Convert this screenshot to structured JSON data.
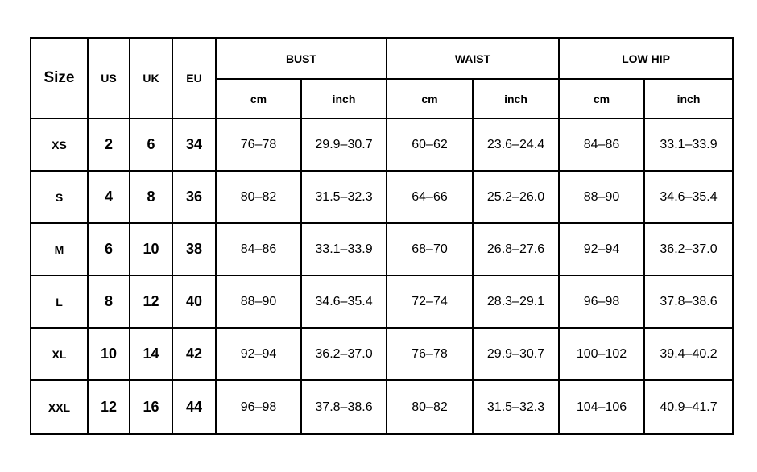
{
  "table": {
    "header": {
      "size": "Size",
      "us": "US",
      "uk": "UK",
      "eu": "EU",
      "groups": [
        {
          "name": "BUST",
          "units": [
            "cm",
            "inch"
          ]
        },
        {
          "name": "WAIST",
          "units": [
            "cm",
            "inch"
          ]
        },
        {
          "name": "LOW HIP",
          "units": [
            "cm",
            "inch"
          ]
        }
      ]
    },
    "rows": [
      [
        "XS",
        "2",
        "6",
        "34",
        "76–78",
        "29.9–30.7",
        "60–62",
        "23.6–24.4",
        "84–86",
        "33.1–33.9"
      ],
      [
        "S",
        "4",
        "8",
        "36",
        "80–82",
        "31.5–32.3",
        "64–66",
        "25.2–26.0",
        "88–90",
        "34.6–35.4"
      ],
      [
        "M",
        "6",
        "10",
        "38",
        "84–86",
        "33.1–33.9",
        "68–70",
        "26.8–27.6",
        "92–94",
        "36.2–37.0"
      ],
      [
        "L",
        "8",
        "12",
        "40",
        "88–90",
        "34.6–35.4",
        "72–74",
        "28.3–29.1",
        "96–98",
        "37.8–38.6"
      ],
      [
        "XL",
        "10",
        "14",
        "42",
        "92–94",
        "36.2–37.0",
        "76–78",
        "29.9–30.7",
        "100–102",
        "39.4–40.2"
      ],
      [
        "XXL",
        "12",
        "16",
        "44",
        "96–98",
        "37.8–38.6",
        "80–82",
        "31.5–32.3",
        "104–106",
        "40.9–41.7"
      ]
    ]
  }
}
